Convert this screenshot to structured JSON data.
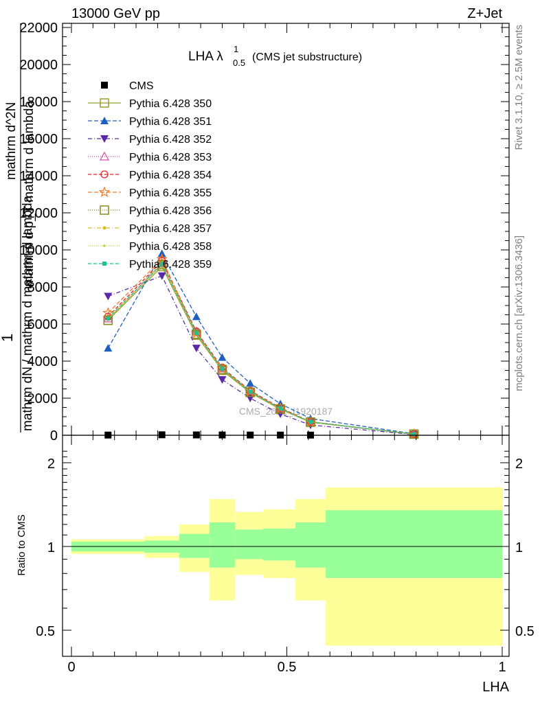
{
  "header": {
    "left": "13000 GeV pp",
    "right": "Z+Jet"
  },
  "side_labels": {
    "rivet": "Rivet 3.1.10, ≥ 2.5M events",
    "mcplots": "mcplots.cern.ch [arXiv:1306.3436]"
  },
  "watermark": "CMS_2021_I1920187",
  "chart_data": [
    {
      "type": "line",
      "title": "LHA λ",
      "title_sup": "1",
      "title_sub": "0.5",
      "title_note": "(CMS jet substructure)",
      "ylabel_parts": [
        "1",
        "mathrm dN / mathrm d mathrm d lambda",
        "mathrm d^2N",
        "mathrm d p_T mathrm d lambda"
      ],
      "xlim": [
        0,
        1
      ],
      "ylim": [
        0,
        22000
      ],
      "yticks": [
        0,
        2000,
        4000,
        6000,
        8000,
        10000,
        12000,
        14000,
        16000,
        18000,
        20000,
        22000
      ],
      "x": [
        0.085,
        0.21,
        0.29,
        0.35,
        0.415,
        0.485,
        0.555,
        0.795
      ],
      "grid": false,
      "legend_position": "top-left",
      "series": [
        {
          "name": "CMS",
          "color": "#000000",
          "marker": "square-filled",
          "dash": "none",
          "values": [
            10,
            25,
            18,
            15,
            12,
            10,
            8,
            2
          ]
        },
        {
          "name": "Pythia 6.428 350",
          "color": "#9a9a32",
          "marker": "square-open",
          "dash": "solid",
          "values": [
            6200,
            9100,
            5400,
            3500,
            2300,
            1400,
            700,
            60
          ]
        },
        {
          "name": "Pythia 6.428 351",
          "color": "#1f5fbf",
          "marker": "triangle-up-filled",
          "dash": "6,3",
          "values": [
            4700,
            9800,
            6400,
            4200,
            2800,
            1700,
            900,
            80
          ]
        },
        {
          "name": "Pythia 6.428 352",
          "color": "#5a2aa6",
          "marker": "triangle-down-filled",
          "dash": "6,3,1,3",
          "values": [
            7500,
            8600,
            4700,
            3000,
            2000,
            1150,
            550,
            40
          ]
        },
        {
          "name": "Pythia 6.428 353",
          "color": "#d04aa6",
          "marker": "triangle-up-open",
          "dash": "1,2",
          "values": [
            6300,
            9300,
            5600,
            3600,
            2400,
            1450,
            720,
            60
          ]
        },
        {
          "name": "Pythia 6.428 354",
          "color": "#e0202a",
          "marker": "circle-open",
          "dash": "5,3",
          "values": [
            6400,
            9400,
            5600,
            3650,
            2400,
            1480,
            730,
            60
          ]
        },
        {
          "name": "Pythia 6.428 355",
          "color": "#ef7a28",
          "marker": "star-open",
          "dash": "6,3",
          "values": [
            6600,
            9500,
            5500,
            3600,
            2350,
            1450,
            720,
            60
          ]
        },
        {
          "name": "Pythia 6.428 356",
          "color": "#8a8a1e",
          "marker": "square-open",
          "dash": "1,2",
          "values": [
            6200,
            9200,
            5450,
            3550,
            2320,
            1420,
            710,
            60
          ]
        },
        {
          "name": "Pythia 6.428 357",
          "color": "#d8c020",
          "marker": "dot",
          "dash": "6,3,1,3",
          "values": [
            6250,
            9300,
            5500,
            3580,
            2340,
            1430,
            715,
            60
          ]
        },
        {
          "name": "Pythia 6.428 358",
          "color": "#b8d830",
          "marker": "small-dot",
          "dash": "1,2",
          "values": [
            6250,
            9250,
            5480,
            3570,
            2330,
            1425,
            712,
            60
          ]
        },
        {
          "name": "Pythia 6.428 359",
          "color": "#22c08a",
          "marker": "square-small",
          "dash": "5,3",
          "values": [
            6300,
            9250,
            5520,
            3590,
            2350,
            1440,
            718,
            60
          ]
        }
      ]
    },
    {
      "type": "area",
      "ylabel": "Ratio to CMS",
      "xlabel": "LHA",
      "xlim": [
        0,
        1
      ],
      "ylim": [
        0.4,
        2.3
      ],
      "yticks_major": [
        0.5,
        1,
        2
      ],
      "xticks_major": [
        0,
        0.5,
        1
      ],
      "xtick_labels": [
        "0",
        "0.5",
        "1"
      ],
      "ytick_labels": [
        "0.5",
        "1",
        "2"
      ],
      "reference_line": 1,
      "bin_edges": [
        0,
        0.17,
        0.25,
        0.32,
        0.38,
        0.445,
        0.52,
        0.59,
        1.0
      ],
      "band_colors": {
        "outer": "#ffff99",
        "inner": "#99ff99"
      },
      "outer_band": {
        "low": [
          0.94,
          0.91,
          0.81,
          0.64,
          0.79,
          0.77,
          0.64,
          0.44
        ],
        "high": [
          1.06,
          1.09,
          1.2,
          1.48,
          1.33,
          1.36,
          1.48,
          1.63
        ]
      },
      "inner_band": {
        "low": [
          0.96,
          0.95,
          0.91,
          0.84,
          0.9,
          0.89,
          0.84,
          0.77
        ],
        "high": [
          1.04,
          1.05,
          1.11,
          1.22,
          1.15,
          1.16,
          1.22,
          1.35
        ]
      }
    }
  ]
}
